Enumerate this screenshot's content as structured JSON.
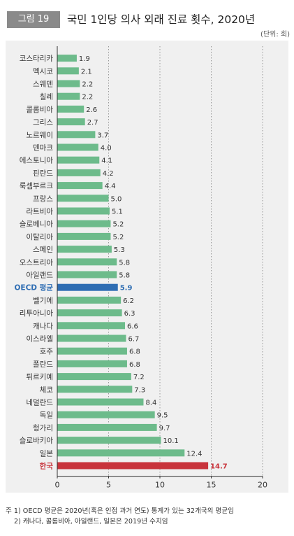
{
  "header": {
    "figure_label": "그림 19",
    "title": "국민 1인당 의사 외래 진료 횟수, 2020년",
    "unit": "(단위: 회)"
  },
  "chart_data": {
    "type": "bar",
    "orientation": "horizontal",
    "categories": [
      "코스타리카",
      "멕시코",
      "스웨덴",
      "칠레",
      "콜롬비아",
      "그리스",
      "노르웨이",
      "덴마크",
      "에스토니아",
      "핀란드",
      "룩셈부르크",
      "프랑스",
      "라트비아",
      "슬로베니아",
      "이탈리아",
      "스페인",
      "오스트리아",
      "아일랜드",
      "OECD 평균",
      "벨기에",
      "리투아니아",
      "캐나다",
      "이스라엘",
      "호주",
      "폴란드",
      "튀르키예",
      "체코",
      "네덜란드",
      "독일",
      "헝가리",
      "슬로바키아",
      "일본",
      "한국"
    ],
    "values": [
      1.9,
      2.1,
      2.2,
      2.2,
      2.6,
      2.7,
      3.7,
      4.0,
      4.1,
      4.2,
      4.4,
      5.0,
      5.1,
      5.2,
      5.2,
      5.3,
      5.8,
      5.8,
      5.9,
      6.2,
      6.3,
      6.6,
      6.7,
      6.8,
      6.8,
      7.2,
      7.3,
      8.4,
      9.5,
      9.7,
      10.1,
      12.4,
      14.7
    ],
    "value_labels": [
      "1.9",
      "2.1",
      "2.2",
      "2.2",
      "2.6",
      "2.7",
      "3.7",
      "4.0",
      "4.1",
      "4.2",
      "4.4",
      "5.0",
      "5.1",
      "5.2",
      "5.2",
      "5.3",
      "5.8",
      "5.8",
      "5.9",
      "6.2",
      "6.3",
      "6.6",
      "6.7",
      "6.8",
      "6.8",
      "7.2",
      "7.3",
      "8.4",
      "9.5",
      "9.7",
      "10.1",
      "12.4",
      "14.7"
    ],
    "xlim": [
      0,
      20
    ],
    "xticks": [
      0,
      5,
      10,
      15,
      20
    ],
    "xtick_labels": [
      "0",
      "5",
      "10",
      "15",
      "20"
    ],
    "grid": "vertical dotted",
    "legend": "none",
    "highlights": {
      "OECD 평균": "oecd",
      "한국": "korea"
    }
  },
  "colors": {
    "bar": "#6dbb8b",
    "oecd": "#2e6db3",
    "korea": "#c8333b",
    "grid": "#999999",
    "axis": "#333333",
    "panel": "#f0f0f0"
  },
  "notes": [
    "주 1) OECD 평균은 2020년(혹은 인접 과거 연도) 통계가 있는 32개국의 평균임",
    "2) 캐나다, 콜롬비아, 아일랜드, 일본은 2019년 수치임"
  ]
}
